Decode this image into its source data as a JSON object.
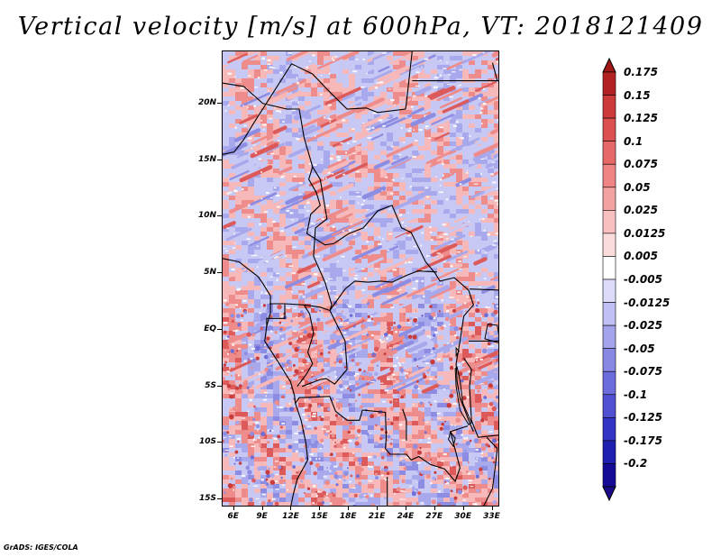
{
  "title": "Vertical velocity [m/s] at 600hPa, VT: 2018121409",
  "footer": "GrADS: IGES/COLA",
  "lat_labels": [
    "20N",
    "15N",
    "10N",
    "5N",
    "EQ",
    "5S",
    "10S",
    "15S"
  ],
  "lat_values": [
    20,
    15,
    10,
    5,
    0,
    -5,
    -10,
    -15
  ],
  "lon_labels": [
    "6E",
    "9E",
    "12E",
    "15E",
    "18E",
    "21E",
    "24E",
    "27E",
    "30E",
    "33E"
  ],
  "lon_values": [
    6,
    9,
    12,
    15,
    18,
    21,
    24,
    27,
    30,
    33
  ],
  "lat_range": [
    -15.7,
    24.6
  ],
  "lon_range": [
    4.8,
    33.8
  ],
  "colorbar": {
    "boundaries": [
      "0.175",
      "0.15",
      "0.125",
      "0.1",
      "0.075",
      "0.05",
      "0.025",
      "0.0125",
      "0.005",
      "-0.005",
      "-0.0125",
      "-0.025",
      "-0.05",
      "-0.075",
      "-0.1",
      "-0.125",
      "-0.175",
      "-0.2"
    ],
    "colors": [
      "#b22222",
      "#cc3a3a",
      "#dc5050",
      "#e66868",
      "#ee8484",
      "#f3a2a2",
      "#f8c0c0",
      "#fbdcdc",
      "#ffffff",
      "#dcdcfa",
      "#c0c0f4",
      "#a4a4ec",
      "#8888e4",
      "#6c6cdc",
      "#5050d0",
      "#3434c4",
      "#2020b0",
      "#140a96"
    ],
    "arrow_top_color": "#a01818",
    "arrow_bottom_color": "#1a0a8a"
  },
  "field_colors": {
    "positive": [
      "#f6b8b8",
      "#ee8c8c",
      "#dc5a5a",
      "#c83c3c"
    ],
    "negative": [
      "#c8c8f4",
      "#a8a8ec",
      "#8c8ce2",
      "#6e6ed8"
    ],
    "neutral": "#e8e6f6"
  },
  "border_color": "#000000"
}
